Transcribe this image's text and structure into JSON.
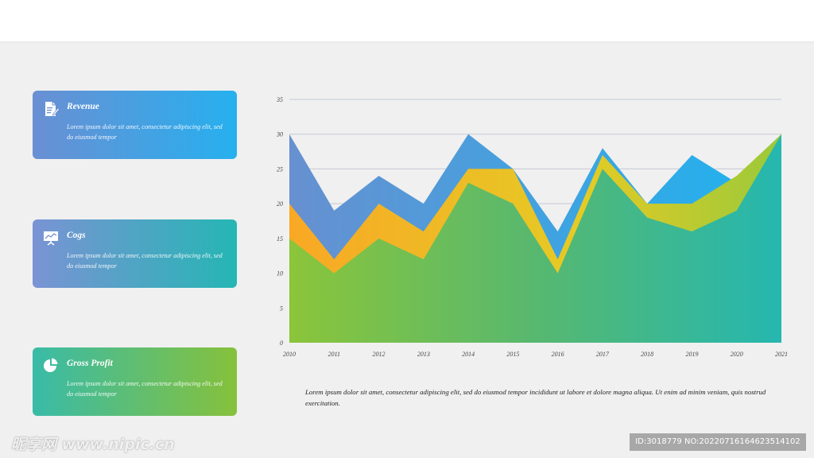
{
  "cards": [
    {
      "title": "Revenue",
      "text": "Lorem ipsum dolor sit amet, consectetur adipiscing elit, sed do eiusmod tempor",
      "icon": "document-edit-icon"
    },
    {
      "title": "Cogs",
      "text": "Lorem ipsum dolor sit amet, consectetur adipiscing elit, sed do eiusmod tempor",
      "icon": "presentation-chart-icon"
    },
    {
      "title": "Gross Profit",
      "text": "Lorem ipsum dolor sit amet, consectetur adipiscing elit, sed do eiusmod tempor",
      "icon": "pie-chart-icon"
    }
  ],
  "caption": "Lorem ipsum dolor sit amet, consectetur adipiscing elit, sed do eiusmod tempor incididunt ut labore et dolore magna aliqua. Ut enim ad minim veniam, quis nostrud exercitation.",
  "watermark": {
    "left": "昵享网 www.nipic.cn",
    "right": "ID:3018779 NO:20220716164623514102"
  },
  "chart_data": {
    "type": "area",
    "x": [
      "2010",
      "2011",
      "2012",
      "2013",
      "2014",
      "2015",
      "2016",
      "2017",
      "2018",
      "2019",
      "2020",
      "2021"
    ],
    "yticks": [
      "0",
      "5",
      "10",
      "15",
      "20",
      "25",
      "30",
      "35"
    ],
    "ylim": [
      0,
      35
    ],
    "grid": true,
    "series": [
      {
        "values": [
          30,
          19,
          24,
          20,
          30,
          25,
          16,
          28,
          20,
          27,
          23,
          30
        ],
        "color": "#3d9bea"
      },
      {
        "values": [
          20,
          12,
          20,
          16,
          25,
          25,
          12,
          27,
          20,
          20,
          24,
          30
        ],
        "color": "#f3c42a"
      },
      {
        "values": [
          15,
          10,
          15,
          12,
          23,
          20,
          10,
          25,
          18,
          16,
          19,
          30
        ],
        "color": "#5ab86b"
      }
    ]
  }
}
